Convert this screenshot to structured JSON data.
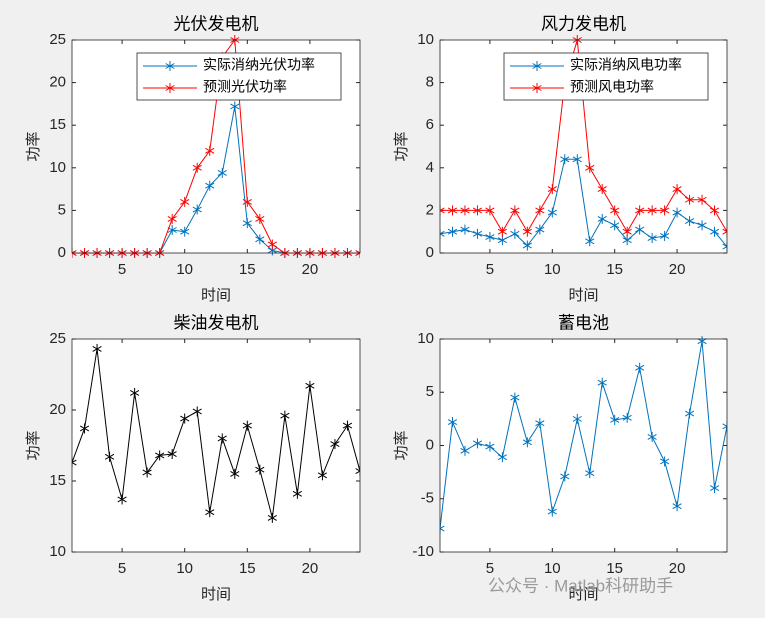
{
  "chart_data": [
    {
      "type": "line",
      "title": "光伏发电机",
      "x_label": "时间",
      "y_label": "功率",
      "x": [
        1,
        2,
        3,
        4,
        5,
        6,
        7,
        8,
        9,
        10,
        11,
        12,
        13,
        14,
        15,
        16,
        17,
        18,
        19,
        20,
        21,
        22,
        23,
        24
      ],
      "xlim": [
        1,
        24
      ],
      "xticks": [
        5,
        10,
        15,
        20
      ],
      "ylim": [
        0,
        25
      ],
      "yticks": [
        0,
        5,
        10,
        15,
        20,
        25
      ],
      "legend": "northeast",
      "series": [
        {
          "name": "实际消纳光伏功率",
          "color": "#0072bd",
          "values": [
            0,
            0,
            0,
            0,
            0,
            0,
            0,
            0,
            2.7,
            2.5,
            5.1,
            7.9,
            9.4,
            17.2,
            3.5,
            1.6,
            0.3,
            0,
            0,
            0,
            0,
            0,
            0,
            0
          ]
        },
        {
          "name": "预测光伏功率",
          "color": "#ff0000",
          "values": [
            0,
            0,
            0,
            0,
            0,
            0,
            0,
            0,
            4,
            6,
            10,
            12,
            23,
            25,
            6,
            4,
            1,
            0,
            0,
            0,
            0,
            0,
            0,
            0
          ]
        }
      ]
    },
    {
      "type": "line",
      "title": "风力发电机",
      "x_label": "时间",
      "y_label": "功率",
      "x": [
        1,
        2,
        3,
        4,
        5,
        6,
        7,
        8,
        9,
        10,
        11,
        12,
        13,
        14,
        15,
        16,
        17,
        18,
        19,
        20,
        21,
        22,
        23,
        24
      ],
      "xlim": [
        1,
        24
      ],
      "xticks": [
        5,
        10,
        15,
        20
      ],
      "ylim": [
        0,
        10
      ],
      "yticks": [
        0,
        2,
        4,
        6,
        8,
        10
      ],
      "legend": "northeast",
      "series": [
        {
          "name": "实际消纳风电功率",
          "color": "#0072bd",
          "values": [
            0.9,
            1.0,
            1.1,
            0.9,
            0.75,
            0.6,
            0.9,
            0.35,
            1.1,
            1.9,
            4.4,
            4.4,
            0.55,
            1.6,
            1.3,
            0.6,
            1.1,
            0.7,
            0.8,
            1.9,
            1.5,
            1.3,
            1.0,
            0.3
          ]
        },
        {
          "name": "预测风电功率",
          "color": "#ff0000",
          "values": [
            2,
            2,
            2,
            2,
            2,
            1,
            2,
            1,
            2,
            3,
            8,
            10,
            4,
            3,
            2,
            1,
            2,
            2,
            2,
            3,
            2.5,
            2.5,
            2,
            1
          ]
        }
      ]
    },
    {
      "type": "line",
      "title": "柴油发电机",
      "x_label": "时间",
      "y_label": "功率",
      "x": [
        1,
        2,
        3,
        4,
        5,
        6,
        7,
        8,
        9,
        10,
        11,
        12,
        13,
        14,
        15,
        16,
        17,
        18,
        19,
        20,
        21,
        22,
        23,
        24
      ],
      "xlim": [
        1,
        24
      ],
      "xticks": [
        5,
        10,
        15,
        20
      ],
      "ylim": [
        10,
        25
      ],
      "yticks": [
        10,
        15,
        20,
        25
      ],
      "series": [
        {
          "color": "#000000",
          "values": [
            16.3,
            18.7,
            24.3,
            16.7,
            13.7,
            21.2,
            15.6,
            16.8,
            16.9,
            19.4,
            19.9,
            12.8,
            18.0,
            15.5,
            18.9,
            15.8,
            12.4,
            19.6,
            14.1,
            21.7,
            15.4,
            17.6,
            18.9,
            15.7
          ]
        }
      ]
    },
    {
      "type": "line",
      "title": "蓄电池",
      "x_label": "时间",
      "y_label": "功率",
      "x": [
        1,
        2,
        3,
        4,
        5,
        6,
        7,
        8,
        9,
        10,
        11,
        12,
        13,
        14,
        15,
        16,
        17,
        18,
        19,
        20,
        21,
        22,
        23,
        24
      ],
      "xlim": [
        1,
        24
      ],
      "xticks": [
        5,
        10,
        15,
        20
      ],
      "ylim": [
        -10,
        10
      ],
      "yticks": [
        -10,
        -5,
        0,
        5,
        10
      ],
      "series": [
        {
          "color": "#0072bd",
          "values": [
            -7.8,
            2.2,
            -0.5,
            0.2,
            -0.1,
            -1.1,
            4.5,
            0.3,
            2.1,
            -6.2,
            -2.9,
            2.5,
            -2.6,
            5.9,
            2.4,
            2.6,
            7.3,
            0.8,
            -1.5,
            -5.7,
            3.0,
            9.8,
            -4.0,
            1.8
          ]
        }
      ]
    }
  ],
  "watermark": "公众号 · Matlab科研助手"
}
